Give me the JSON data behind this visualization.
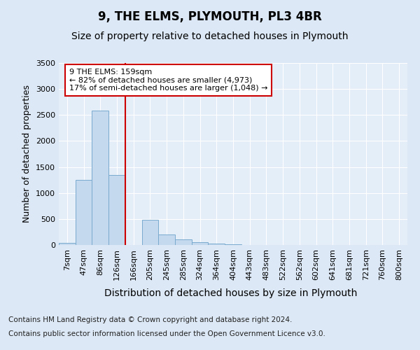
{
  "title": "9, THE ELMS, PLYMOUTH, PL3 4BR",
  "subtitle": "Size of property relative to detached houses in Plymouth",
  "xlabel": "Distribution of detached houses by size in Plymouth",
  "ylabel": "Number of detached properties",
  "categories": [
    "7sqm",
    "47sqm",
    "86sqm",
    "126sqm",
    "166sqm",
    "205sqm",
    "245sqm",
    "285sqm",
    "324sqm",
    "364sqm",
    "404sqm",
    "443sqm",
    "483sqm",
    "522sqm",
    "562sqm",
    "602sqm",
    "641sqm",
    "681sqm",
    "721sqm",
    "760sqm",
    "800sqm"
  ],
  "bar_values": [
    45,
    1250,
    2580,
    1350,
    0,
    490,
    200,
    105,
    50,
    30,
    15,
    0,
    0,
    0,
    0,
    0,
    0,
    0,
    0,
    0,
    0
  ],
  "bar_color": "#c5d9ee",
  "bar_edge_color": "#7aaacf",
  "vline_index": 4,
  "vline_color": "#cc0000",
  "annotation_text": "9 THE ELMS: 159sqm\n← 82% of detached houses are smaller (4,973)\n17% of semi-detached houses are larger (1,048) →",
  "annotation_box_color": "#ffffff",
  "annotation_box_edge": "#cc0000",
  "ylim": [
    0,
    3500
  ],
  "yticks": [
    0,
    500,
    1000,
    1500,
    2000,
    2500,
    3000,
    3500
  ],
  "bg_color": "#dce8f5",
  "plot_bg_color": "#e4eef8",
  "grid_color": "#ffffff",
  "footer_line1": "Contains HM Land Registry data © Crown copyright and database right 2024.",
  "footer_line2": "Contains public sector information licensed under the Open Government Licence v3.0.",
  "title_fontsize": 12,
  "subtitle_fontsize": 10,
  "xlabel_fontsize": 10,
  "ylabel_fontsize": 9,
  "tick_fontsize": 8,
  "annot_fontsize": 8,
  "footer_fontsize": 7.5
}
